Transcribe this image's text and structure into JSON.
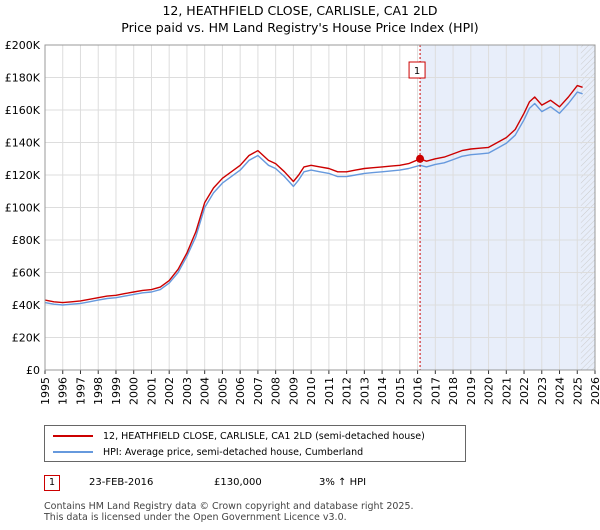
{
  "title_line1": "12, HEATHFIELD CLOSE, CARLISLE, CA1 2LD",
  "title_line2": "Price paid vs. HM Land Registry's House Price Index (HPI)",
  "legend": {
    "property_label": "12, HEATHFIELD CLOSE, CARLISLE, CA1 2LD (semi-detached house)",
    "hpi_label": "HPI: Average price, semi-detached house, Cumberland"
  },
  "annotation": {
    "marker": "1",
    "date": "23-FEB-2016",
    "price": "£130,000",
    "hpi_change": "3% ↑ HPI"
  },
  "footer_line1": "Contains HM Land Registry data © Crown copyright and database right 2025.",
  "footer_line2": "This data is licensed under the Open Government Licence v3.0.",
  "colors": {
    "property": "#cc0000",
    "hpi": "#6699dd",
    "shade": "#e8eefa",
    "grid": "#dddddd"
  },
  "chart_data": {
    "type": "line",
    "title": "Price paid vs. HM Land Registry's House Price Index (HPI)",
    "xlim": [
      1995,
      2026
    ],
    "ylim": [
      0,
      200000
    ],
    "y_ticks": [
      0,
      20000,
      40000,
      60000,
      80000,
      100000,
      120000,
      140000,
      160000,
      180000,
      200000
    ],
    "y_tick_labels": [
      "£0",
      "£20K",
      "£40K",
      "£60K",
      "£80K",
      "£100K",
      "£120K",
      "£140K",
      "£160K",
      "£180K",
      "£200K"
    ],
    "x_ticks": [
      1995,
      1996,
      1997,
      1998,
      1999,
      2000,
      2001,
      2002,
      2003,
      2004,
      2005,
      2006,
      2007,
      2008,
      2009,
      2010,
      2011,
      2012,
      2013,
      2014,
      2015,
      2016,
      2017,
      2018,
      2019,
      2020,
      2021,
      2022,
      2023,
      2024,
      2025,
      2026
    ],
    "x_tick_labels": [
      "1995",
      "1996",
      "1997",
      "1998",
      "1999",
      "2000",
      "2001",
      "2002",
      "2003",
      "2004",
      "2005",
      "2006",
      "2007",
      "2008",
      "2009",
      "2010",
      "2011",
      "2012",
      "2013",
      "2014",
      "2015",
      "2016",
      "2017",
      "2018",
      "2019",
      "2020",
      "2021",
      "2022",
      "2023",
      "2024",
      "2025",
      "2026"
    ],
    "sale_marker": {
      "label": "1",
      "x": 2016.14,
      "y": 130000
    },
    "shaded_from": 2016.14,
    "hatched_from": 2025.2,
    "series": [
      {
        "name": "12, HEATHFIELD CLOSE, CARLISLE, CA1 2LD (semi-detached house)",
        "color": "#cc0000",
        "x": [
          1995.0,
          1995.5,
          1996.0,
          1996.5,
          1997.0,
          1997.5,
          1998.0,
          1998.5,
          1999.0,
          1999.5,
          2000.0,
          2000.5,
          2001.0,
          2001.5,
          2002.0,
          2002.5,
          2003.0,
          2003.5,
          2004.0,
          2004.5,
          2005.0,
          2005.5,
          2006.0,
          2006.5,
          2007.0,
          2007.3,
          2007.6,
          2008.0,
          2008.5,
          2009.0,
          2009.3,
          2009.6,
          2010.0,
          2010.5,
          2011.0,
          2011.5,
          2012.0,
          2012.5,
          2013.0,
          2013.5,
          2014.0,
          2014.5,
          2015.0,
          2015.5,
          2016.14,
          2016.5,
          2017.0,
          2017.5,
          2018.0,
          2018.5,
          2019.0,
          2019.5,
          2020.0,
          2020.5,
          2021.0,
          2021.5,
          2022.0,
          2022.3,
          2022.6,
          2023.0,
          2023.5,
          2024.0,
          2024.5,
          2025.0,
          2025.3
        ],
        "values": [
          43000,
          42000,
          41500,
          42000,
          42500,
          43500,
          44500,
          45500,
          46000,
          47000,
          48000,
          49000,
          49500,
          51000,
          55000,
          62000,
          72000,
          85000,
          103000,
          112000,
          118000,
          122000,
          126000,
          132000,
          135000,
          132000,
          129000,
          127000,
          122000,
          116000,
          120000,
          125000,
          126000,
          125000,
          124000,
          122000,
          122000,
          123000,
          124000,
          124500,
          125000,
          125500,
          126000,
          127000,
          130000,
          128500,
          130000,
          131000,
          133000,
          135000,
          136000,
          136500,
          137000,
          140000,
          143000,
          148000,
          158000,
          165000,
          168000,
          163000,
          166000,
          162000,
          168000,
          175000,
          174000
        ]
      },
      {
        "name": "HPI: Average price, semi-detached house, Cumberland",
        "color": "#6699dd",
        "x": [
          1995.0,
          1995.5,
          1996.0,
          1996.5,
          1997.0,
          1997.5,
          1998.0,
          1998.5,
          1999.0,
          1999.5,
          2000.0,
          2000.5,
          2001.0,
          2001.5,
          2002.0,
          2002.5,
          2003.0,
          2003.5,
          2004.0,
          2004.5,
          2005.0,
          2005.5,
          2006.0,
          2006.5,
          2007.0,
          2007.3,
          2007.6,
          2008.0,
          2008.5,
          2009.0,
          2009.3,
          2009.6,
          2010.0,
          2010.5,
          2011.0,
          2011.5,
          2012.0,
          2012.5,
          2013.0,
          2013.5,
          2014.0,
          2014.5,
          2015.0,
          2015.5,
          2016.14,
          2016.5,
          2017.0,
          2017.5,
          2018.0,
          2018.5,
          2019.0,
          2019.5,
          2020.0,
          2020.5,
          2021.0,
          2021.5,
          2022.0,
          2022.3,
          2022.6,
          2023.0,
          2023.5,
          2024.0,
          2024.5,
          2025.0,
          2025.3
        ],
        "values": [
          41500,
          40500,
          40000,
          40500,
          41000,
          42000,
          43000,
          44000,
          44500,
          45500,
          46500,
          47500,
          48000,
          49500,
          53500,
          60000,
          70000,
          82000,
          100000,
          109000,
          115000,
          119000,
          123000,
          129000,
          132000,
          129000,
          126000,
          124000,
          119000,
          113000,
          117000,
          122000,
          123000,
          122000,
          121000,
          119000,
          119000,
          120000,
          121000,
          121500,
          122000,
          122500,
          123000,
          124000,
          126000,
          125000,
          126500,
          127500,
          129500,
          131500,
          132500,
          133000,
          133500,
          136500,
          139500,
          144500,
          154000,
          161000,
          164000,
          159000,
          162000,
          158000,
          164000,
          171000,
          170000
        ]
      }
    ]
  }
}
